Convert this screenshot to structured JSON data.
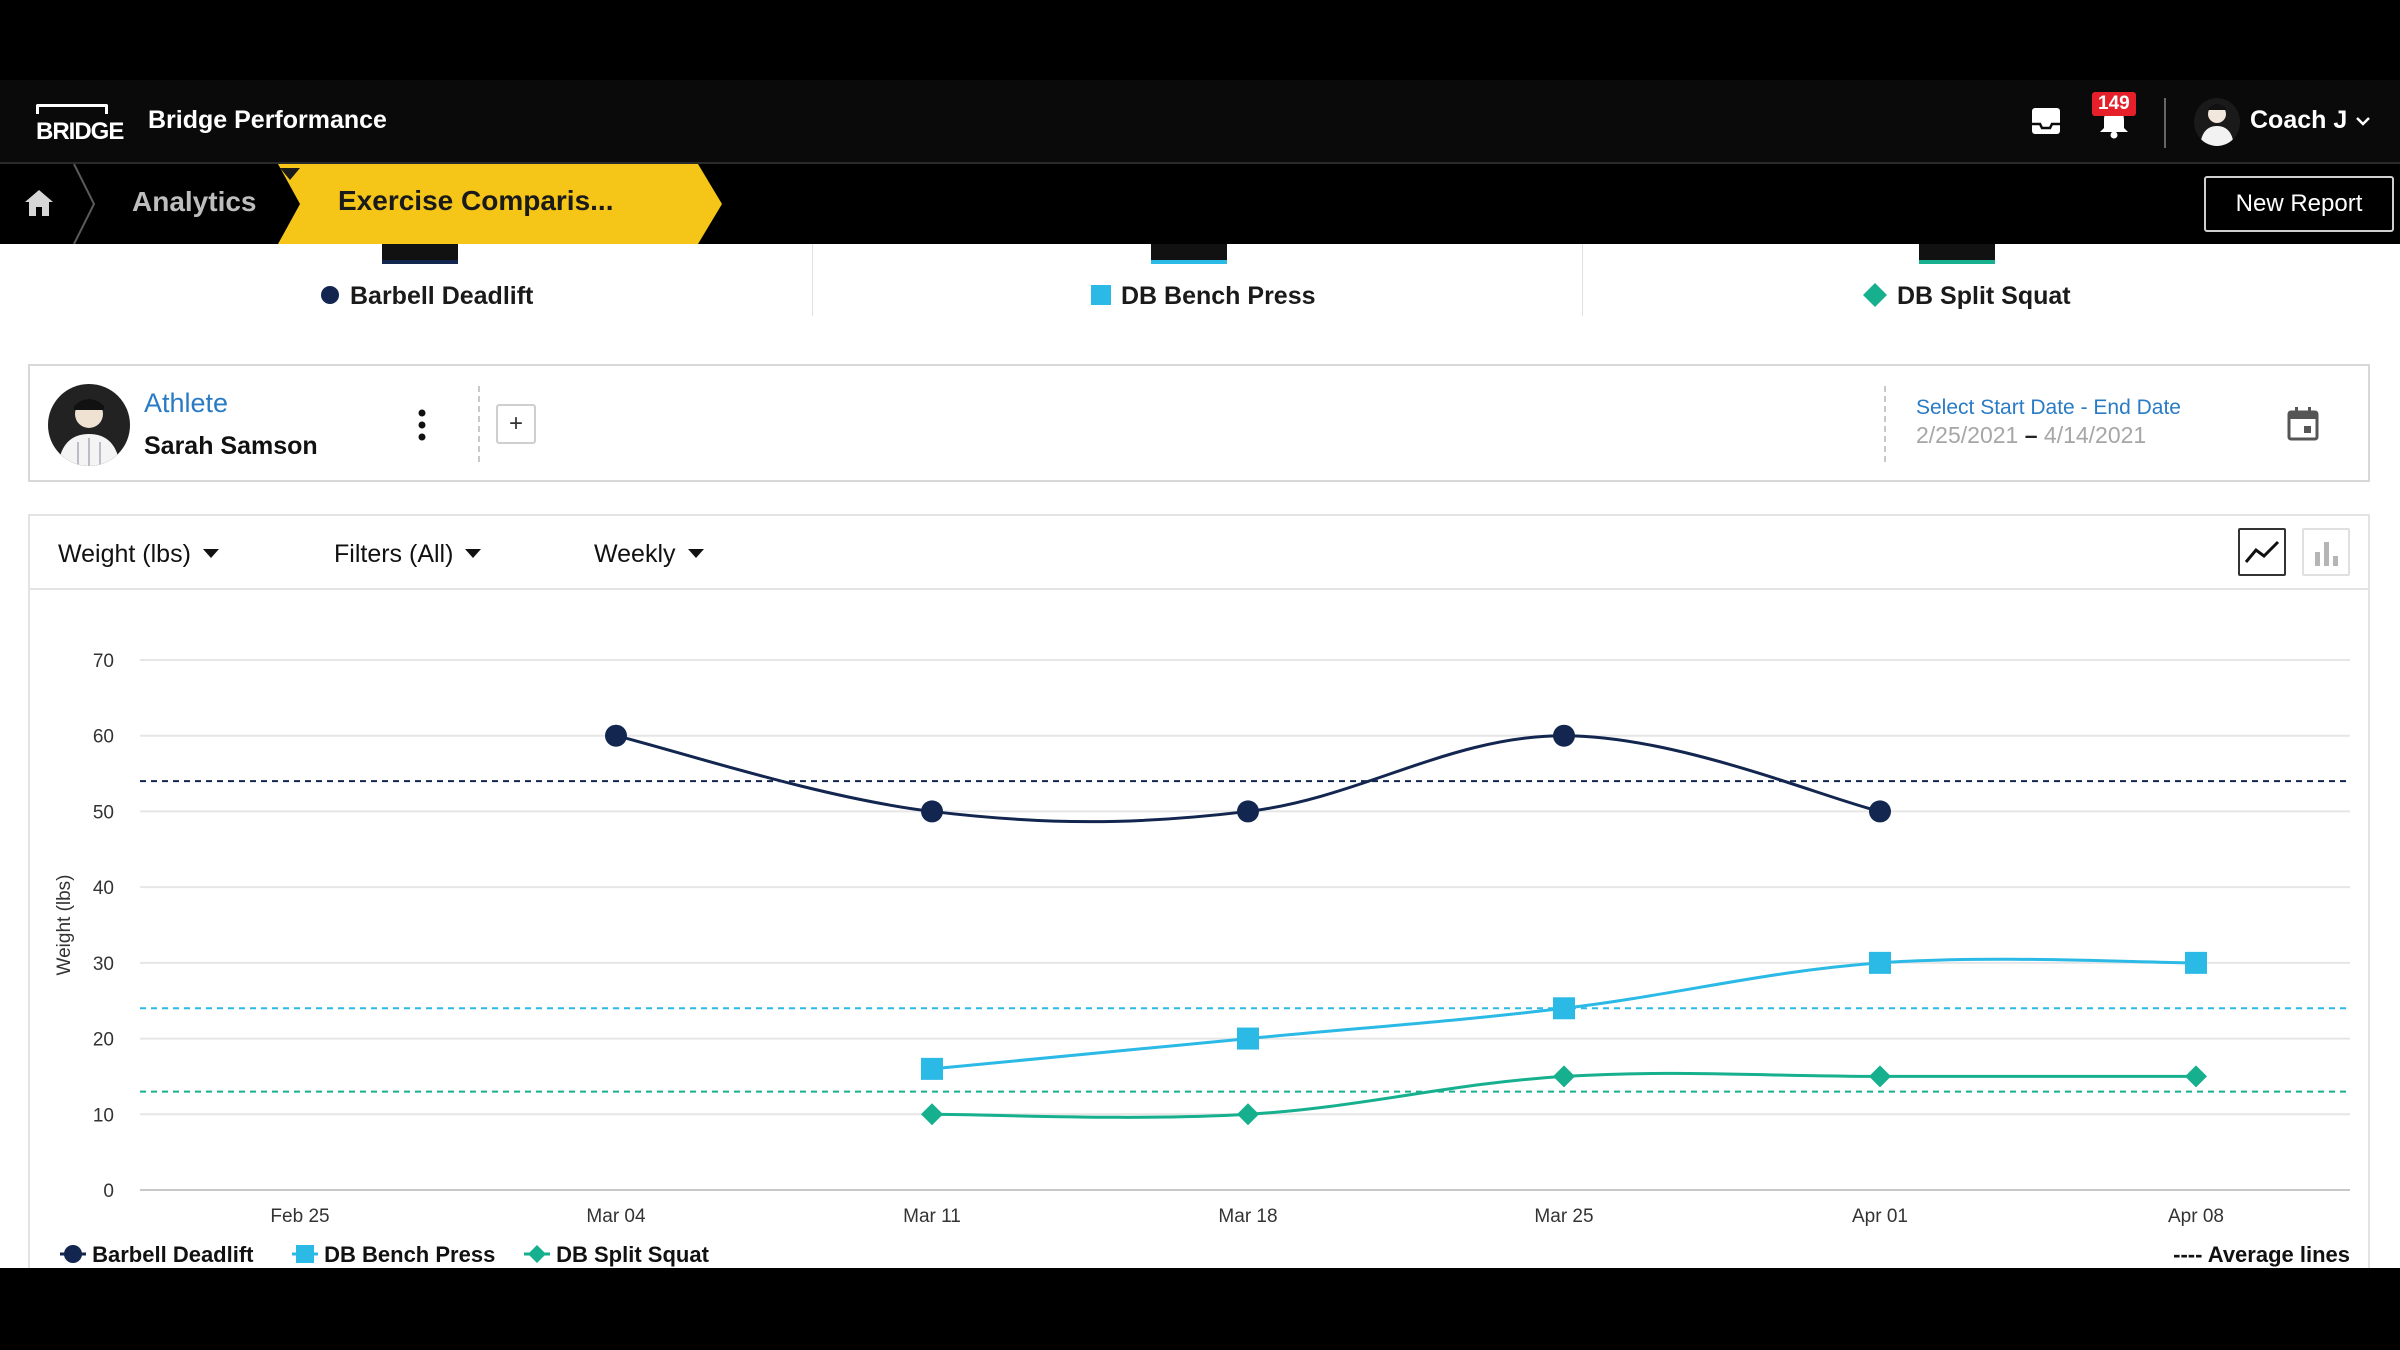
{
  "header": {
    "logo_text": "BRIDGE",
    "app_title": "Bridge Performance",
    "notifications_count": "149",
    "user_name": "Coach J"
  },
  "breadcrumb": {
    "section": "Analytics",
    "current": "Exercise Comparis...",
    "new_report_label": "New Report"
  },
  "exercises": [
    {
      "name": "Barbell Deadlift",
      "marker": "circle",
      "color": "#12264f"
    },
    {
      "name": "DB Bench Press",
      "marker": "square",
      "color": "#2bb9e6"
    },
    {
      "name": "DB Split Squat",
      "marker": "diamond",
      "color": "#17b08e"
    }
  ],
  "athlete": {
    "role_label": "Athlete",
    "name": "Sarah Samson",
    "add_label": "+",
    "date_title": "Select Start Date - End Date",
    "start_date": "2/25/2021",
    "date_separator": "–",
    "end_date": "4/14/2021"
  },
  "toolbar": {
    "metric": "Weight (lbs)",
    "filters": "Filters (All)",
    "interval": "Weekly",
    "view_mode": "line"
  },
  "chart_data": {
    "type": "line",
    "ylabel": "Weight (lbs)",
    "xlabel": "",
    "ylim": [
      0,
      70
    ],
    "y_ticks": [
      0,
      10,
      20,
      30,
      40,
      50,
      60,
      70
    ],
    "categories": [
      "Feb 25",
      "Mar 04",
      "Mar 11",
      "Mar 18",
      "Mar 25",
      "Apr 01",
      "Apr 08"
    ],
    "grid": true,
    "series": [
      {
        "name": "Barbell Deadlift",
        "color": "#12264f",
        "marker": "circle",
        "values": [
          null,
          60,
          50,
          50,
          60,
          50,
          null
        ],
        "average": 54
      },
      {
        "name": "DB Bench Press",
        "color": "#2bb9e6",
        "marker": "square",
        "values": [
          null,
          null,
          16,
          20,
          24,
          30,
          30
        ],
        "average": 24
      },
      {
        "name": "DB Split Squat",
        "color": "#17b08e",
        "marker": "diamond",
        "values": [
          null,
          null,
          10,
          10,
          15,
          15,
          15
        ],
        "average": 13
      }
    ],
    "average_lines_label": "---- Average lines",
    "legend_position": "bottom"
  }
}
